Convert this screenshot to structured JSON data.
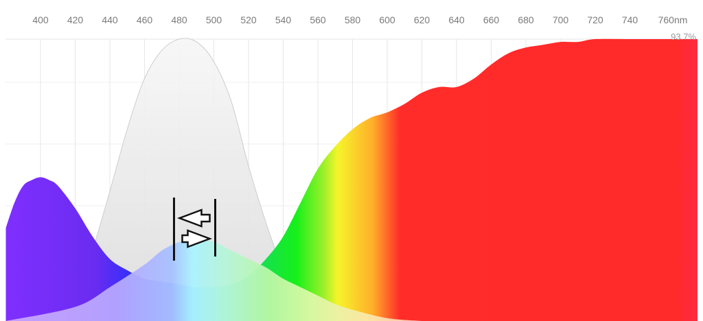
{
  "chart_data": {
    "type": "area",
    "title": "",
    "xlabel": "",
    "ylabel": "",
    "x_unit": "nm",
    "xlim": [
      380,
      790
    ],
    "ylim": [
      0,
      100
    ],
    "x_ticks": [
      400,
      420,
      440,
      460,
      480,
      500,
      520,
      540,
      560,
      580,
      600,
      620,
      640,
      660,
      680,
      700,
      720,
      740,
      760
    ],
    "tick_labels": [
      "400",
      "420",
      "440",
      "460",
      "480",
      "500",
      "520",
      "540",
      "560",
      "580",
      "600",
      "620",
      "640",
      "660",
      "680",
      "700",
      "720",
      "740",
      "760nm"
    ],
    "peak_label": "93.7%",
    "grid": true,
    "legend": "none",
    "series": [
      {
        "x": [
          380,
          385,
          390,
          395,
          400,
          405,
          410,
          420,
          430,
          440,
          450,
          460,
          470,
          480,
          490,
          500,
          510,
          520,
          530,
          540,
          550,
          560,
          570,
          580,
          590,
          600,
          610,
          620,
          630,
          640,
          650,
          660,
          670,
          680,
          690,
          700,
          710,
          720,
          740,
          760,
          770,
          790
        ],
        "y": [
          33,
          42,
          48,
          50,
          51,
          50,
          48,
          40,
          30,
          22,
          18,
          15,
          14,
          13,
          12,
          12,
          13,
          16,
          22,
          30,
          42,
          54,
          62,
          68,
          72,
          74,
          77,
          81,
          83,
          83,
          86,
          91,
          95,
          97,
          98,
          99,
          99,
          100,
          100,
          100,
          100,
          100
        ]
      },
      {
        "x": [
          380,
          420,
          440,
          460,
          470,
          480,
          490,
          500,
          510,
          520,
          530,
          540,
          550,
          560,
          570,
          580,
          600,
          620
        ],
        "y": [
          0,
          5,
          12,
          20,
          25,
          28,
          29,
          28,
          25,
          22,
          19,
          15,
          12,
          9,
          6,
          4,
          1,
          0
        ]
      },
      {
        "x": [
          410,
          420,
          430,
          440,
          450,
          460,
          470,
          480,
          490,
          500,
          510,
          520,
          530,
          540,
          550,
          560
        ],
        "y": [
          0,
          6,
          25,
          46,
          68,
          86,
          96,
          100,
          99,
          92,
          78,
          55,
          35,
          18,
          6,
          0
        ]
      }
    ],
    "annotation": {
      "type": "double-arrow",
      "x_range": [
        479,
        500
      ]
    },
    "colors": {
      "violet": "#7a2cff",
      "blue": "#1f3dff",
      "cyan": "#00d4ff",
      "green": "#19e632",
      "yellow": "#f7f72a",
      "orange": "#ff9a2a",
      "red": "#ff2a2a",
      "grid": "#e6e6e6",
      "tick": "#7a7a7a"
    }
  }
}
